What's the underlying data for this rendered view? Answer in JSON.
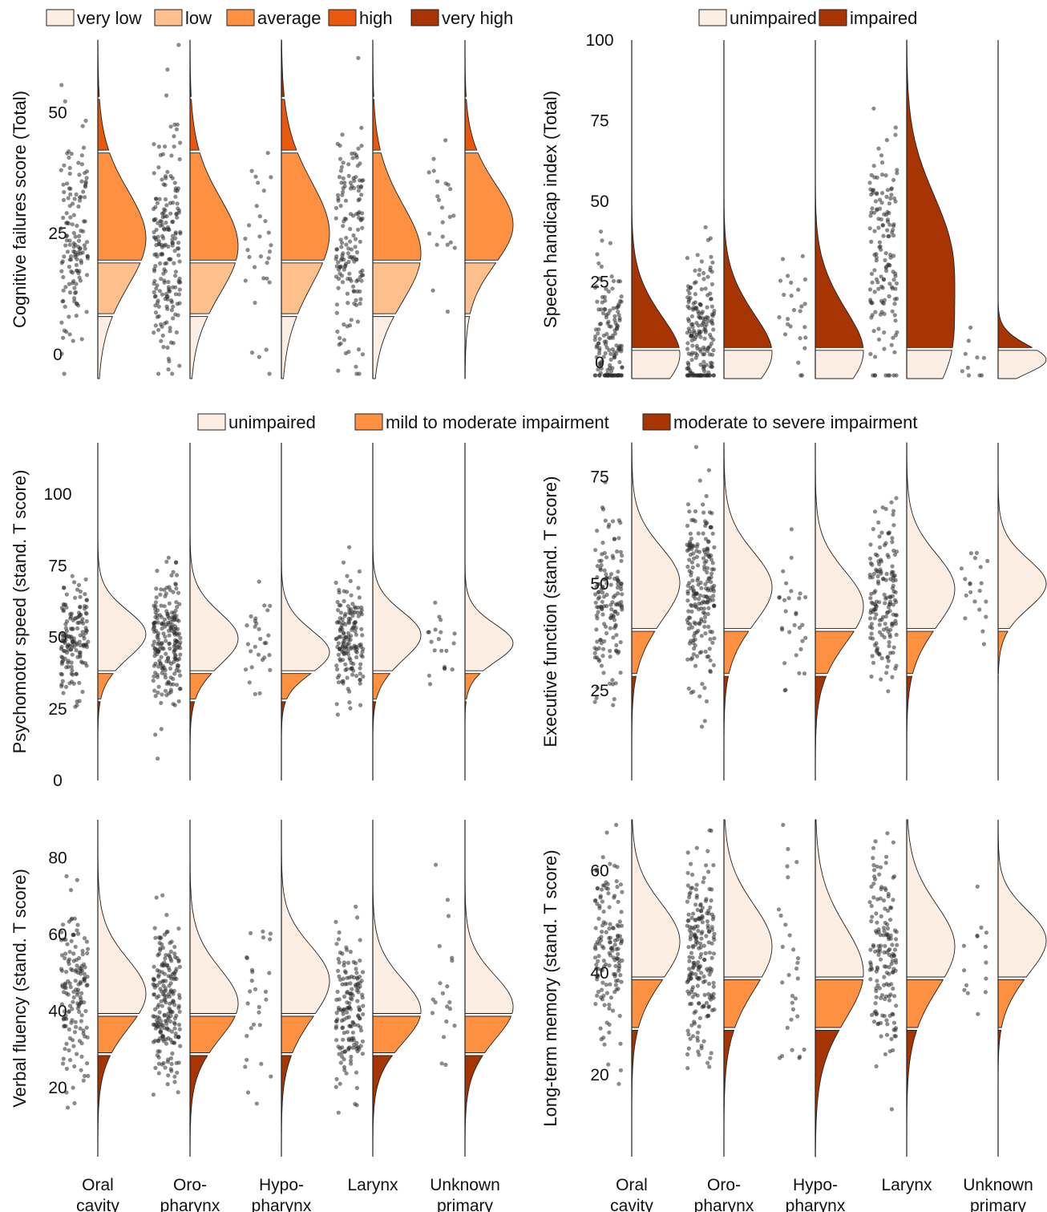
{
  "legends": {
    "cognitive": [
      {
        "label": "very low",
        "color": "#fdeee4"
      },
      {
        "label": "low",
        "color": "#fdc08d"
      },
      {
        "label": "average",
        "color": "#fd9041"
      },
      {
        "label": "high",
        "color": "#e8580f"
      },
      {
        "label": "very high",
        "color": "#a63503"
      }
    ],
    "speech": [
      {
        "label": "unimpaired",
        "color": "#fdeee4"
      },
      {
        "label": "impaired",
        "color": "#a63503"
      }
    ],
    "impairment": [
      {
        "label": "unimpaired",
        "color": "#fdeee4"
      },
      {
        "label": "mild to moderate impairment",
        "color": "#fd9041"
      },
      {
        "label": "moderate to severe impairment",
        "color": "#a63503"
      }
    ]
  },
  "chart_data": [
    {
      "type": "raincloud",
      "ylabel": "Cognitive failures score (Total)",
      "ylim": [
        -5,
        65
      ],
      "yticks": [
        0,
        25,
        50
      ],
      "categories": [],
      "bands": [
        {
          "from": -12,
          "to": 8,
          "color": "#fdeee4"
        },
        {
          "from": 8,
          "to": 19,
          "color": "#fdc08d"
        },
        {
          "from": 19,
          "to": 42,
          "color": "#fd9041"
        },
        {
          "from": 42,
          "to": 53,
          "color": "#e8580f"
        },
        {
          "from": 53,
          "to": 66,
          "color": "#a63503"
        }
      ],
      "series": [
        {
          "mean": 24,
          "sd": 12,
          "n": 140,
          "density_peak": 24
        },
        {
          "mean": 23,
          "sd": 12,
          "n": 200,
          "density_peak": 22
        },
        {
          "mean": 25,
          "sd": 13,
          "n": 30,
          "density_peak": 25
        },
        {
          "mean": 22,
          "sd": 12,
          "n": 160,
          "density_peak": 20
        },
        {
          "mean": 28,
          "sd": 10,
          "n": 22,
          "density_peak": 26
        }
      ]
    },
    {
      "type": "raincloud",
      "ylabel": "Speech handicap index (Total)",
      "ylim": [
        -5,
        100
      ],
      "yticks": [
        0,
        25,
        50,
        75,
        100
      ],
      "categories": [],
      "bands": [
        {
          "from": -12,
          "to": 4,
          "color": "#fdeee4"
        },
        {
          "from": 4,
          "to": 100,
          "color": "#a63503"
        }
      ],
      "series": [
        {
          "mean": 6,
          "sd": 13,
          "n": 150,
          "density_peak": 0
        },
        {
          "mean": 7,
          "sd": 13,
          "n": 190,
          "density_peak": 0
        },
        {
          "mean": 8,
          "sd": 14,
          "n": 25,
          "density_peak": 0
        },
        {
          "mean": 32,
          "sd": 20,
          "n": 150,
          "density_peak": 0
        },
        {
          "mean": 2,
          "sd": 5,
          "n": 10,
          "density_peak": 0
        }
      ]
    },
    {
      "type": "raincloud",
      "ylabel": "Psychomotor speed (stand. T score)",
      "ylim": [
        0,
        118
      ],
      "yticks": [
        0,
        25,
        50,
        75,
        100
      ],
      "categories": [],
      "bands": [
        {
          "from": 0,
          "to": 28,
          "color": "#a63503"
        },
        {
          "from": 28,
          "to": 38,
          "color": "#fd9041"
        },
        {
          "from": 38,
          "to": 118,
          "color": "#fdeee4"
        }
      ],
      "series": [
        {
          "mean": 50,
          "sd": 10,
          "n": 150,
          "density_peak": 52
        },
        {
          "mean": 49,
          "sd": 11,
          "n": 210,
          "density_peak": 50
        },
        {
          "mean": 46,
          "sd": 9,
          "n": 28,
          "density_peak": 44
        },
        {
          "mean": 49,
          "sd": 10,
          "n": 160,
          "density_peak": 52
        },
        {
          "mean": 48,
          "sd": 8,
          "n": 20,
          "density_peak": 48
        }
      ]
    },
    {
      "type": "raincloud",
      "ylabel": "Executive function (stand. T score)",
      "ylim": [
        4,
        83
      ],
      "yticks": [
        25,
        50,
        75
      ],
      "categories": [],
      "bands": [
        {
          "from": 4,
          "to": 29,
          "color": "#a63503"
        },
        {
          "from": 29,
          "to": 39,
          "color": "#fd9041"
        },
        {
          "from": 39,
          "to": 83,
          "color": "#fdeee4"
        }
      ],
      "series": [
        {
          "mean": 48,
          "sd": 10,
          "n": 150,
          "density_peak": 52
        },
        {
          "mean": 48,
          "sd": 10,
          "n": 210,
          "density_peak": 50
        },
        {
          "mean": 43,
          "sd": 10,
          "n": 30,
          "density_peak": 46
        },
        {
          "mean": 47,
          "sd": 10,
          "n": 160,
          "density_peak": 50
        },
        {
          "mean": 50,
          "sd": 7,
          "n": 20,
          "density_peak": 50
        }
      ]
    },
    {
      "type": "raincloud",
      "ylabel": "Verbal fluency (stand. T score)",
      "ylim": [
        2,
        90
      ],
      "yticks": [
        20,
        40,
        60,
        80
      ],
      "categories": [
        "Oral cavity",
        "Oro-pharynx",
        "Hypo-pharynx",
        "Larynx",
        "Unknown primary"
      ],
      "bands": [
        {
          "from": 2,
          "to": 29,
          "color": "#a63503"
        },
        {
          "from": 29,
          "to": 39,
          "color": "#fd9041"
        },
        {
          "from": 39,
          "to": 90,
          "color": "#fdeee4"
        }
      ],
      "series": [
        {
          "mean": 44,
          "sd": 11,
          "n": 150,
          "density_peak": 45
        },
        {
          "mean": 42,
          "sd": 11,
          "n": 210,
          "density_peak": 42
        },
        {
          "mean": 45,
          "sd": 11,
          "n": 28,
          "density_peak": 50
        },
        {
          "mean": 40,
          "sd": 10,
          "n": 160,
          "density_peak": 40
        },
        {
          "mean": 40,
          "sd": 10,
          "n": 20,
          "density_peak": 42
        }
      ]
    },
    {
      "type": "raincloud",
      "ylabel": "Long-term memory (stand. T score)",
      "ylim": [
        4,
        70
      ],
      "yticks": [
        20,
        40,
        60
      ],
      "categories": [
        "Oral cavity",
        "Oro-pharynx",
        "Hypo-pharynx",
        "Larynx",
        "Unknown primary"
      ],
      "bands": [
        {
          "from": 4,
          "to": 29,
          "color": "#a63503"
        },
        {
          "from": 29,
          "to": 39,
          "color": "#fd9041"
        },
        {
          "from": 39,
          "to": 70,
          "color": "#fdeee4"
        }
      ],
      "series": [
        {
          "mean": 45,
          "sd": 9,
          "n": 150,
          "density_peak": 47
        },
        {
          "mean": 44,
          "sd": 10,
          "n": 210,
          "density_peak": 46
        },
        {
          "mean": 40,
          "sd": 11,
          "n": 30,
          "density_peak": 40
        },
        {
          "mean": 44,
          "sd": 10,
          "n": 160,
          "density_peak": 46
        },
        {
          "mean": 44,
          "sd": 7,
          "n": 15,
          "density_peak": 48
        }
      ]
    }
  ]
}
